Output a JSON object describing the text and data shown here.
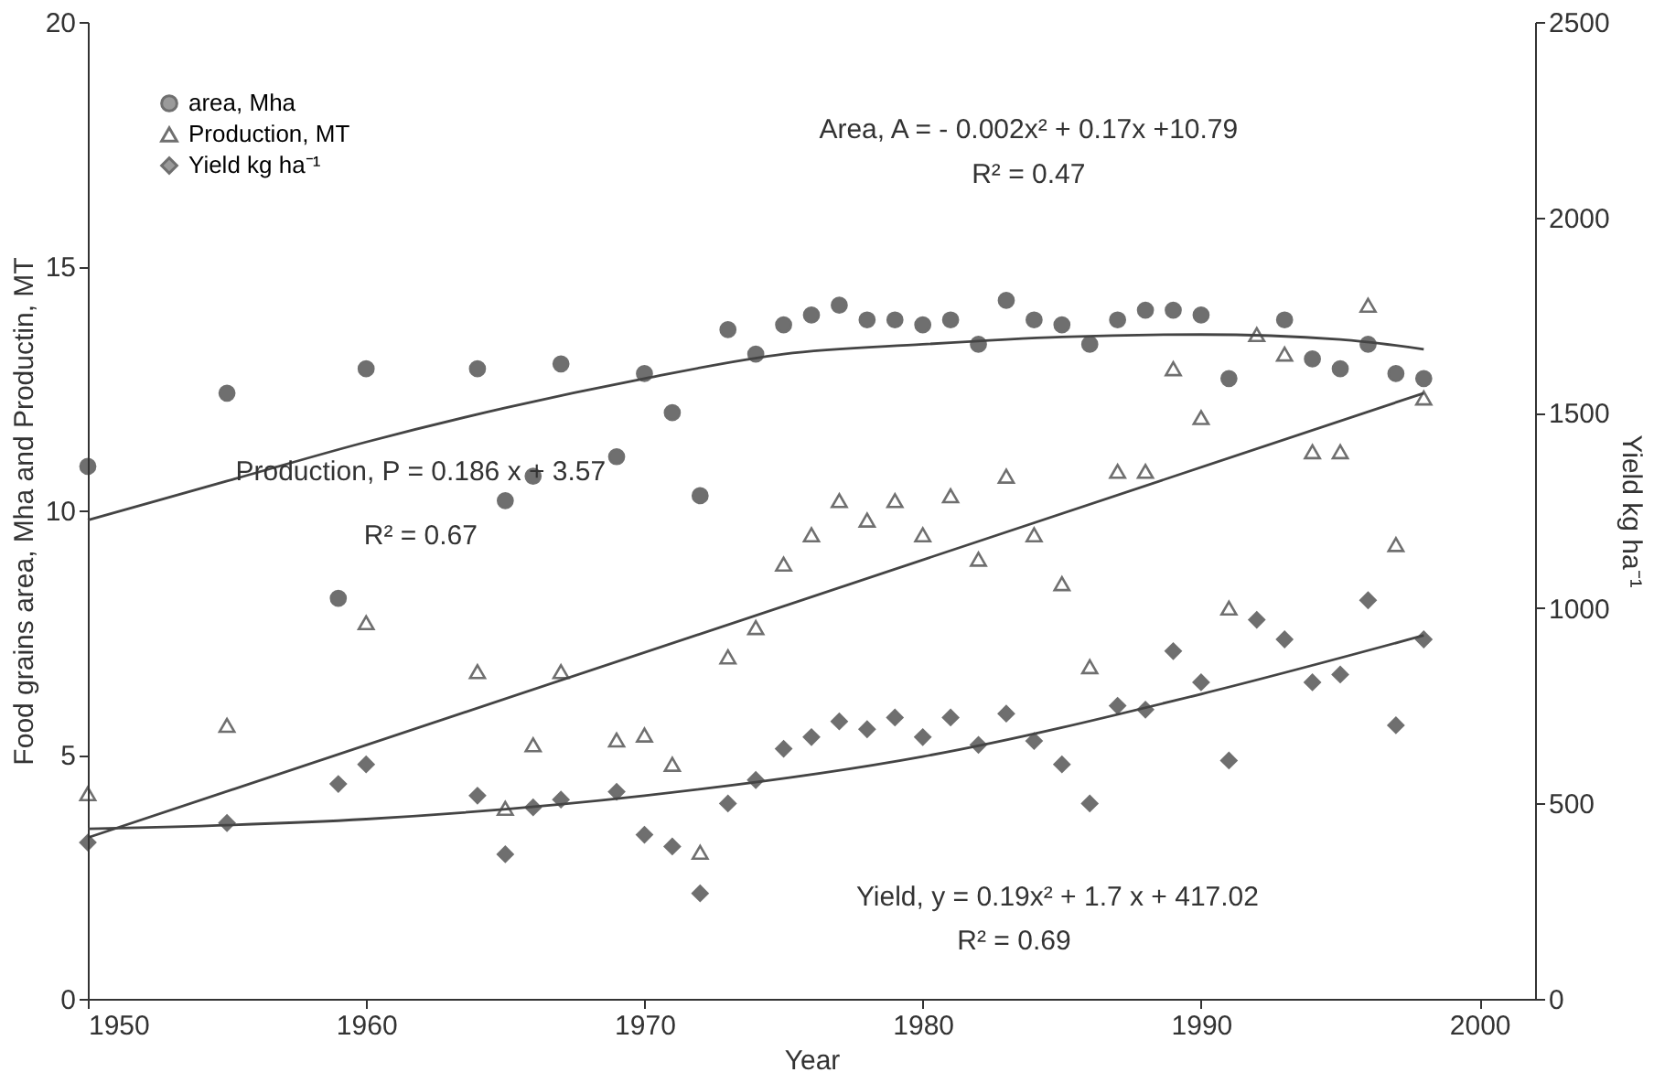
{
  "chart_data": {
    "type": "scatter",
    "xlabel": "Year",
    "ylabel": "Food grains area, Mha and Productin, MT",
    "y2label": "Yield kg ha⁻¹",
    "xlim": [
      1950,
      2002
    ],
    "xticks": [
      1950,
      1960,
      1970,
      1980,
      1990,
      2000
    ],
    "ylim": [
      0,
      20
    ],
    "yticks": [
      0,
      5,
      10,
      15,
      20
    ],
    "y2lim": [
      0,
      2500
    ],
    "y2ticks": [
      0,
      500,
      {
        "value": 1000,
        "label": "1000"
      },
      {
        "value": 1500,
        "label": "1500"
      },
      {
        "value": 2000,
        "label": "2000"
      },
      {
        "value": 2500,
        "label": "2500"
      }
    ],
    "grid": false,
    "legend": "top left",
    "series": [
      {
        "name": "area, Mha",
        "marker": "circle",
        "color": "#333333",
        "x": [
          1950,
          1955,
          1959,
          1960,
          1964,
          1965,
          1966,
          1967,
          1969,
          1970,
          1971,
          1972,
          1973,
          1974,
          1975,
          1976,
          1977,
          1978,
          1979,
          1980,
          1981,
          1982,
          1983,
          1984,
          1985,
          1986,
          1987,
          1988,
          1989,
          1990,
          1991,
          1993,
          1994,
          1995,
          1996,
          1997,
          1998
        ],
        "values": [
          10.9,
          12.4,
          8.2,
          12.9,
          12.9,
          10.2,
          10.7,
          13.0,
          11.1,
          12.8,
          12.0,
          10.3,
          13.7,
          13.2,
          13.8,
          14.0,
          14.2,
          13.9,
          13.9,
          13.8,
          13.9,
          13.4,
          14.3,
          13.9,
          13.8,
          13.4,
          13.9,
          14.1,
          14.1,
          14.0,
          12.7,
          13.9,
          13.1,
          12.9,
          13.4,
          12.8,
          12.7
        ]
      },
      {
        "name": "Production, MT",
        "marker": "triangle",
        "color": "#333333",
        "x": [
          1950,
          1955,
          1960,
          1964,
          1965,
          1966,
          1967,
          1969,
          1970,
          1971,
          1972,
          1973,
          1974,
          1975,
          1976,
          1977,
          1978,
          1979,
          1980,
          1981,
          1982,
          1983,
          1984,
          1985,
          1986,
          1987,
          1988,
          1989,
          1990,
          1991,
          1992,
          1993,
          1994,
          1995,
          1996,
          1997,
          1998
        ],
        "values": [
          4.2,
          5.6,
          7.7,
          6.7,
          3.9,
          5.2,
          6.7,
          5.3,
          5.4,
          4.8,
          3.0,
          7.0,
          7.6,
          8.9,
          9.5,
          10.2,
          9.8,
          10.2,
          9.5,
          10.3,
          9.0,
          10.7,
          9.5,
          8.5,
          6.8,
          10.8,
          10.8,
          12.9,
          11.9,
          8.0,
          13.6,
          13.2,
          11.2,
          11.2,
          14.2,
          9.3,
          12.3
        ]
      },
      {
        "name": "Yield kg ha⁻¹",
        "marker": "diamond",
        "color": "#333333",
        "axis": "y2",
        "x": [
          1950,
          1955,
          1959,
          1960,
          1964,
          1965,
          1966,
          1967,
          1969,
          1970,
          1971,
          1972,
          1973,
          1974,
          1975,
          1976,
          1977,
          1978,
          1979,
          1980,
          1981,
          1982,
          1983,
          1984,
          1985,
          1986,
          1987,
          1988,
          1989,
          1990,
          1991,
          1992,
          1993,
          1994,
          1995,
          1996,
          1997,
          1998
        ],
        "values": [
          400,
          450,
          550,
          600,
          520,
          370,
          490,
          510,
          530,
          420,
          390,
          270,
          500,
          560,
          640,
          670,
          710,
          690,
          720,
          670,
          720,
          650,
          730,
          660,
          600,
          500,
          750,
          740,
          890,
          810,
          610,
          970,
          920,
          810,
          830,
          1020,
          700,
          920
        ]
      },
      {
        "type": "line",
        "color": "#444444",
        "x": [
          1950,
          1955,
          1960,
          1965,
          1970,
          1975,
          1980,
          1985,
          1990,
          1995,
          1998
        ],
        "values": [
          9.8,
          10.6,
          11.4,
          12.1,
          12.7,
          13.2,
          13.4,
          13.55,
          13.6,
          13.5,
          13.3
        ]
      },
      {
        "type": "line",
        "color": "#444444",
        "x": [
          1950,
          1998
        ],
        "values": [
          3.3,
          12.4
        ]
      },
      {
        "type": "line",
        "color": "#444444",
        "axis": "y2",
        "x": [
          1950,
          1960,
          1970,
          1980,
          1990,
          1998
        ],
        "values": [
          435,
          460,
          520,
          620,
          780,
          930
        ]
      }
    ],
    "annotations": [
      "Area, A = - 0.002x² + 0.17x +10.79",
      "R² = 0.47",
      "Production, P = 0.186 x  + 3.57",
      "R² = 0.67",
      "Yield, y = 0.19x²   + 1.7 x + 417.02",
      "R² = 0.69"
    ]
  }
}
